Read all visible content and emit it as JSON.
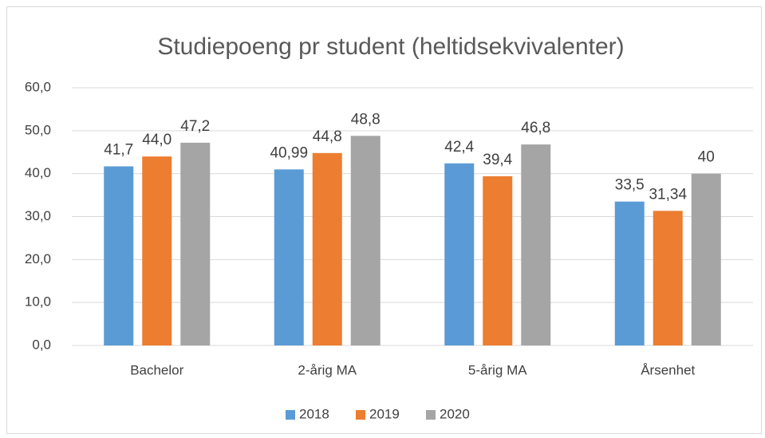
{
  "chart_data": {
    "type": "bar",
    "title": "Studiepoeng pr student (heltidsekvivalenter)",
    "categories": [
      "Bachelor",
      "2-årig MA",
      "5-årig MA",
      "Årsenhet"
    ],
    "series": [
      {
        "name": "2018",
        "color": "#5b9bd5",
        "values": [
          41.7,
          40.99,
          42.4,
          33.5
        ],
        "value_labels": [
          "41,7",
          "40,99",
          "42,4",
          "33,5"
        ]
      },
      {
        "name": "2019",
        "color": "#ed7d31",
        "values": [
          44.0,
          44.8,
          39.4,
          31.34
        ],
        "value_labels": [
          "44,0",
          "44,8",
          "39,4",
          "31,34"
        ]
      },
      {
        "name": "2020",
        "color": "#a5a5a5",
        "values": [
          47.2,
          48.8,
          46.8,
          40
        ],
        "value_labels": [
          "47,2",
          "48,8",
          "46,8",
          "40"
        ]
      }
    ],
    "ylim": [
      0,
      60
    ],
    "yticks": [
      {
        "value": 0,
        "label": "0,0"
      },
      {
        "value": 10,
        "label": "10,0"
      },
      {
        "value": 20,
        "label": "20,0"
      },
      {
        "value": 30,
        "label": "30,0"
      },
      {
        "value": 40,
        "label": "40,0"
      },
      {
        "value": 50,
        "label": "50,0"
      },
      {
        "value": 60,
        "label": "60,0"
      }
    ],
    "grid": true,
    "legend": "bottom"
  }
}
